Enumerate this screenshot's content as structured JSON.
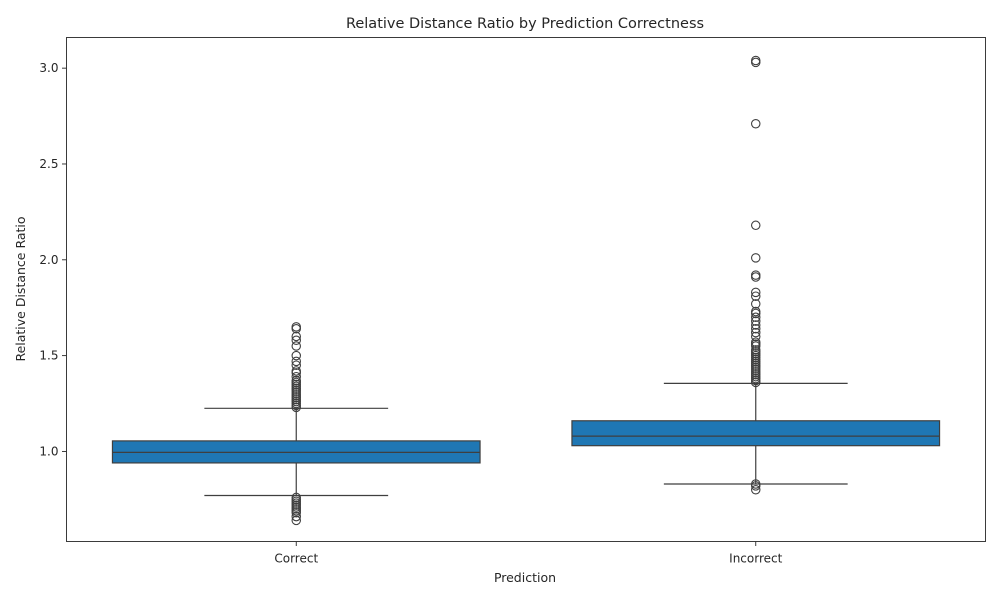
{
  "chart_data": {
    "type": "boxplot",
    "title": "Relative Distance Ratio by Prediction Correctness",
    "xlabel": "Prediction",
    "ylabel": "Relative Distance Ratio",
    "ylim": [
      0.53,
      3.16
    ],
    "yticks": [
      1.0,
      1.5,
      2.0,
      2.5,
      3.0
    ],
    "grid": false,
    "box_color": "#1f77b4",
    "line_color": "#3f3f3f",
    "categories": [
      "Correct",
      "Incorrect"
    ],
    "boxes": [
      {
        "category": "Correct",
        "q1": 0.94,
        "median": 0.995,
        "q3": 1.055,
        "whisker_low": 0.77,
        "whisker_high": 1.225,
        "outliers": [
          1.23,
          1.24,
          1.25,
          1.26,
          1.27,
          1.28,
          1.29,
          1.3,
          1.31,
          1.32,
          1.33,
          1.34,
          1.35,
          1.36,
          1.37,
          1.39,
          1.41,
          1.42,
          1.45,
          1.47,
          1.5,
          1.55,
          1.58,
          1.6,
          1.64,
          1.65,
          0.76,
          0.75,
          0.74,
          0.73,
          0.72,
          0.71,
          0.7,
          0.69,
          0.68,
          0.66,
          0.64
        ]
      },
      {
        "category": "Incorrect",
        "q1": 1.03,
        "median": 1.08,
        "q3": 1.16,
        "whisker_low": 0.83,
        "whisker_high": 1.355,
        "outliers": [
          1.36,
          1.37,
          1.38,
          1.39,
          1.4,
          1.41,
          1.42,
          1.43,
          1.44,
          1.45,
          1.46,
          1.47,
          1.48,
          1.49,
          1.5,
          1.51,
          1.52,
          1.53,
          1.55,
          1.56,
          1.57,
          1.6,
          1.62,
          1.64,
          1.66,
          1.68,
          1.7,
          1.72,
          1.73,
          1.77,
          1.81,
          1.83,
          1.91,
          1.92,
          2.01,
          2.18,
          2.71,
          3.03,
          3.04,
          0.82,
          0.83,
          0.8
        ]
      }
    ]
  }
}
